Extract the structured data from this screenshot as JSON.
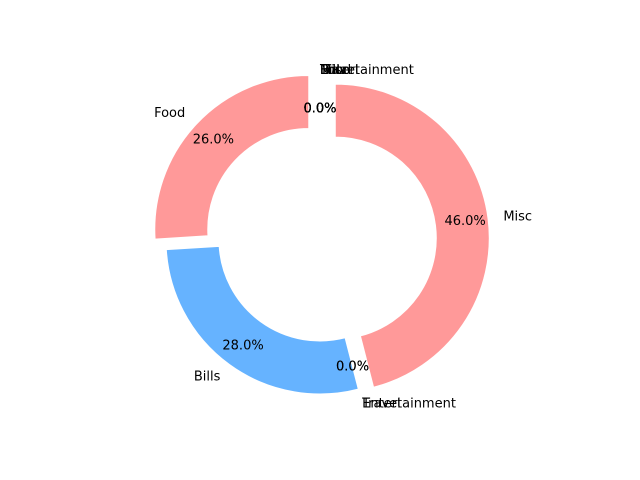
{
  "chart_data": {
    "type": "pie",
    "style": "donut",
    "title": "",
    "slices": [
      {
        "label": "Food",
        "value": 26.0,
        "pct_label": "26.0%",
        "color": "#ff9999",
        "exploded": true
      },
      {
        "label": "Bills",
        "value": 28.0,
        "pct_label": "28.0%",
        "color": "#66b3ff",
        "exploded": false
      },
      {
        "label": "Entertainment",
        "value": 0.0,
        "pct_label": "0.0%",
        "color": "#99ff99",
        "exploded": false
      },
      {
        "label": "Travel",
        "value": 0.0,
        "pct_label": "0.0%",
        "color": "#ffcc99",
        "exploded": false
      },
      {
        "label": "Misc",
        "value": 46.0,
        "pct_label": "46.0%",
        "color": "#ff9999",
        "exploded": true
      },
      {
        "label": "Food",
        "value": 0.0,
        "pct_label": "0.0%",
        "color": "#66b3ff",
        "exploded": false
      },
      {
        "label": "Bills",
        "value": 0.0,
        "pct_label": "0.0%",
        "color": "#99ff99",
        "exploded": false
      },
      {
        "label": "Entertainment",
        "value": 0.0,
        "pct_label": "0.0%",
        "color": "#ffcc99",
        "exploded": false
      },
      {
        "label": "Travel",
        "value": 0.0,
        "pct_label": "0.0%",
        "color": "#ff9999",
        "exploded": false
      },
      {
        "label": "Misc",
        "value": 0.0,
        "pct_label": "0.0%",
        "color": "#66b3ff",
        "exploded": false
      }
    ]
  }
}
